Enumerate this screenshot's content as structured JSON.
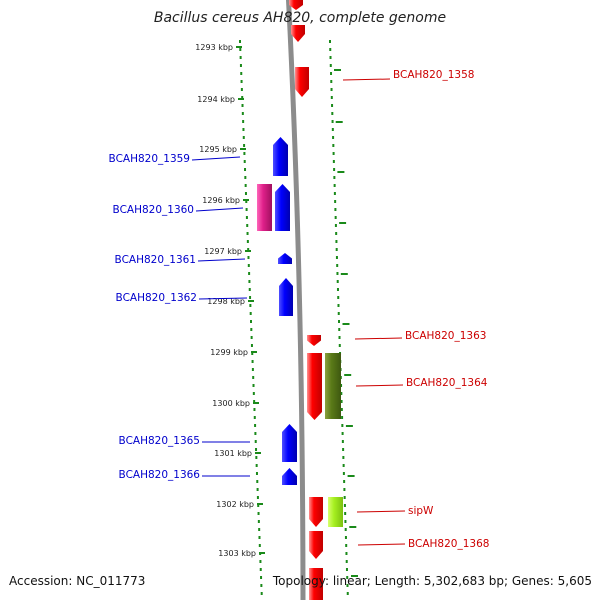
{
  "title": "Bacillus cereus AH820, complete genome",
  "accession_text": "Accession: NC_011773",
  "info_text": "Topology: linear; Length: 5,302,683 bp; Genes: 5,605",
  "colors": {
    "forward_gene": "#ff0000",
    "reverse_gene": "#0000ff",
    "label_forward": "#cc0000",
    "label_reverse": "#0000cc",
    "ruler_dots": "#1a8a1a",
    "backbone": "#888888"
  },
  "ruler": [
    "1293 kbp",
    "1294 kbp",
    "1295 kbp",
    "1296 kbp",
    "1297 kbp",
    "1298 kbp",
    "1299 kbp",
    "1300 kbp",
    "1301 kbp",
    "1302 kbp",
    "1303 kbp"
  ],
  "left_labels": [
    "BCAH820_1359",
    "BCAH820_1360",
    "BCAH820_1361",
    "BCAH820_1362",
    "BCAH820_1365",
    "BCAH820_1366"
  ],
  "right_labels": [
    "BCAH820_1358",
    "BCAH820_1363",
    "BCAH820_1364",
    "sipW",
    "BCAH820_1368"
  ]
}
